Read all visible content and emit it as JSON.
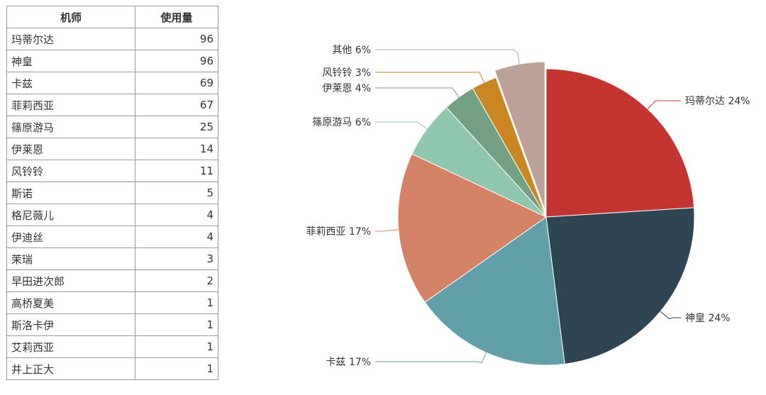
{
  "table": {
    "headers": [
      "机师",
      "使用量"
    ],
    "rows": [
      [
        "玛蒂尔达",
        "96"
      ],
      [
        "神皇",
        "96"
      ],
      [
        "卡兹",
        "69"
      ],
      [
        "菲莉西亚",
        "67"
      ],
      [
        "篠原游马",
        "25"
      ],
      [
        "伊莱恩",
        "14"
      ],
      [
        "风铃铃",
        "11"
      ],
      [
        "斯诺",
        "5"
      ],
      [
        "格尼薇儿",
        "4"
      ],
      [
        "伊迪丝",
        "4"
      ],
      [
        "茉瑞",
        "3"
      ],
      [
        "早田进次郎",
        "2"
      ],
      [
        "高桥夏美",
        "1"
      ],
      [
        "斯洛卡伊",
        "1"
      ],
      [
        "艾莉西亚",
        "1"
      ],
      [
        "井上正大",
        "1"
      ]
    ]
  },
  "chart_data": {
    "type": "pie",
    "slices": [
      {
        "label": "玛蒂尔达",
        "value": 96,
        "percent_label": "24%",
        "color": "#c23531"
      },
      {
        "label": "神皇",
        "value": 96,
        "percent_label": "24%",
        "color": "#2f4554"
      },
      {
        "label": "卡兹",
        "value": 69,
        "percent_label": "17%",
        "color": "#61a0a8"
      },
      {
        "label": "菲莉西亚",
        "value": 67,
        "percent_label": "17%",
        "color": "#d48265"
      },
      {
        "label": "篠原游马",
        "value": 25,
        "percent_label": "6%",
        "color": "#91c7ae"
      },
      {
        "label": "伊莱恩",
        "value": 14,
        "percent_label": "4%",
        "color": "#749f83"
      },
      {
        "label": "风铃铃",
        "value": 11,
        "percent_label": "3%",
        "color": "#ca8622"
      },
      {
        "label": "其他",
        "value": 22,
        "percent_label": "6%",
        "color": "#bda29a",
        "exploded": true
      }
    ]
  }
}
